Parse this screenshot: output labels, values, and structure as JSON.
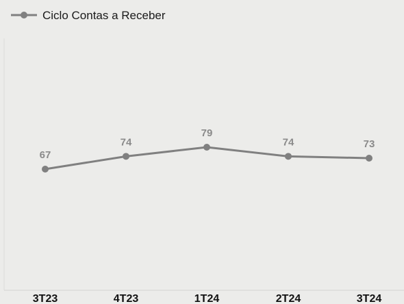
{
  "chart_data": {
    "type": "line",
    "categories": [
      "3T23",
      "4T23",
      "1T24",
      "2T24",
      "3T24"
    ],
    "series": [
      {
        "name": "Ciclo Contas a Receber",
        "values": [
          67,
          74,
          79,
          74,
          73
        ],
        "color": "#808080"
      }
    ],
    "data_labels": [
      "67",
      "74",
      "79",
      "74",
      "73"
    ],
    "legend_position": "top-left",
    "grid": false
  }
}
